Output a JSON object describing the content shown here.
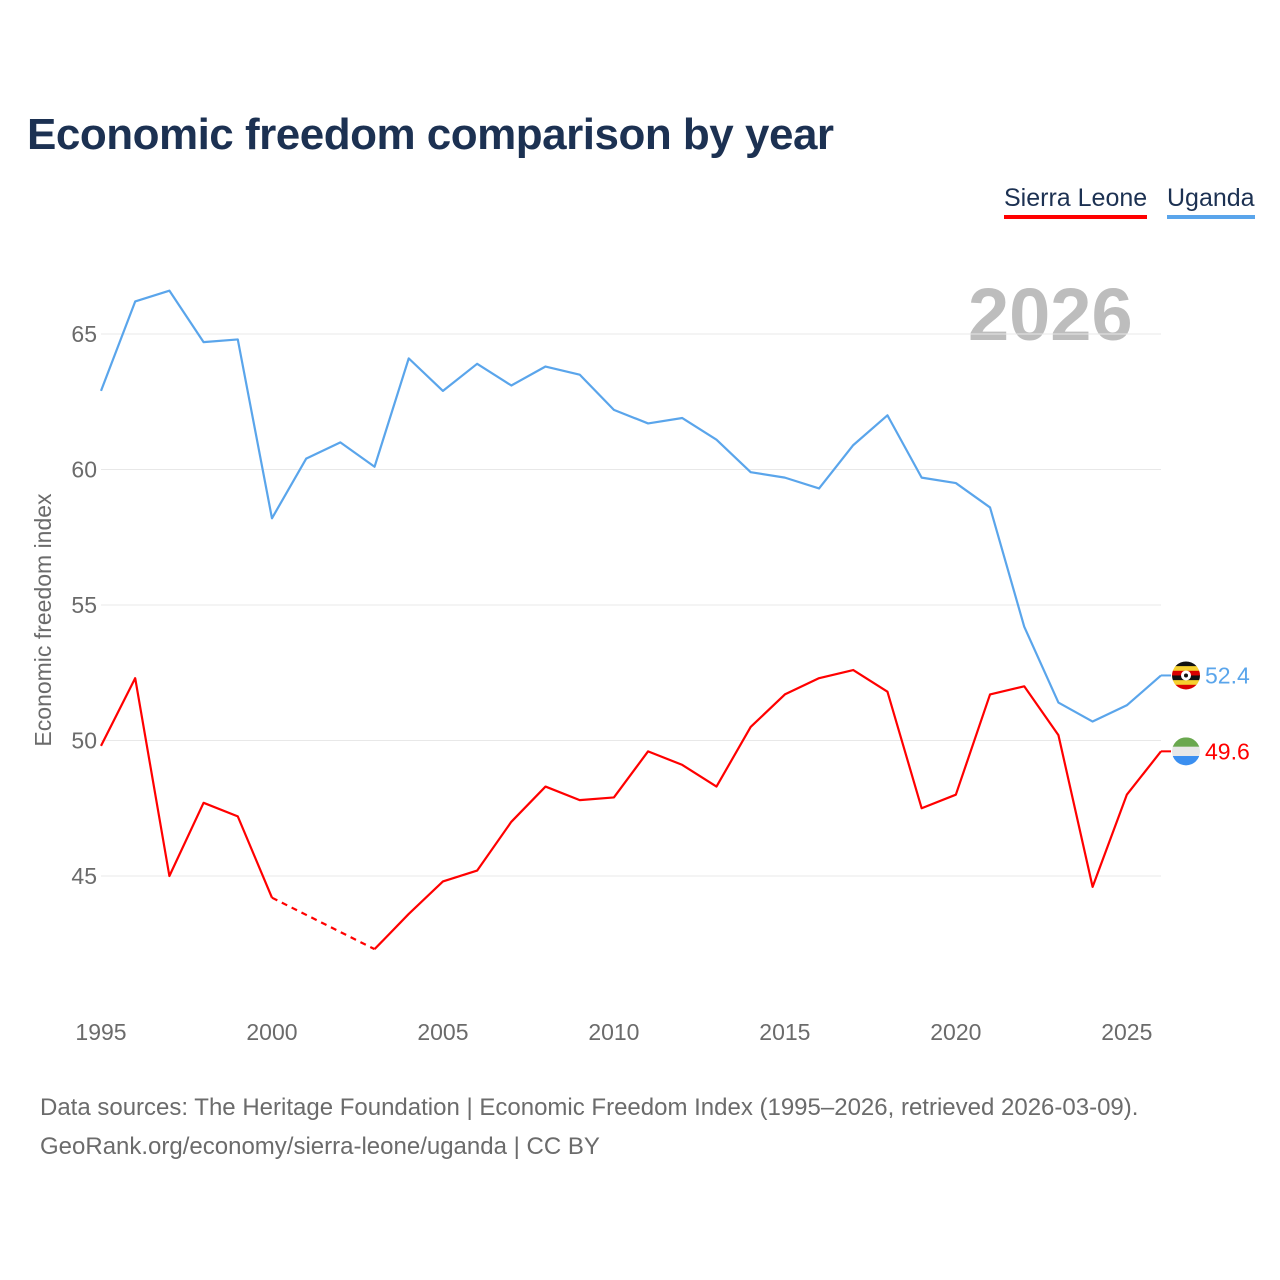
{
  "chart_data": {
    "type": "line",
    "title": "Economic freedom comparison by year",
    "ylabel": "Economic freedom index",
    "xlabel": "",
    "ylim": [
      40,
      67
    ],
    "xlim": [
      1995,
      2026
    ],
    "yticks": [
      "45",
      "50",
      "55",
      "60",
      "65"
    ],
    "xticks": [
      "1995",
      "2000",
      "2005",
      "2010",
      "2015",
      "2020",
      "2025"
    ],
    "grid": true,
    "legend_position": "top-right",
    "current_year": "2026",
    "x": [
      1995,
      1996,
      1997,
      1998,
      1999,
      2000,
      2001,
      2002,
      2003,
      2004,
      2005,
      2006,
      2007,
      2008,
      2009,
      2010,
      2011,
      2012,
      2013,
      2014,
      2015,
      2016,
      2017,
      2018,
      2019,
      2020,
      2021,
      2022,
      2023,
      2024,
      2025,
      2026
    ],
    "series": [
      {
        "name": "Sierra Leone",
        "color": "#ff0000",
        "end_label": "49.6",
        "flag": "sierra-leone-flag",
        "values": [
          49.8,
          52.3,
          45.0,
          47.7,
          47.2,
          44.2,
          null,
          null,
          42.3,
          43.6,
          44.8,
          45.2,
          47.0,
          48.3,
          47.8,
          47.9,
          49.6,
          49.1,
          48.3,
          50.5,
          51.7,
          52.3,
          52.6,
          51.8,
          47.5,
          48.0,
          51.7,
          52.0,
          50.2,
          44.6,
          48.0,
          49.6
        ]
      },
      {
        "name": "Uganda",
        "color": "#5aa5eb",
        "end_label": "52.4",
        "flag": "uganda-flag",
        "values": [
          62.9,
          66.2,
          66.6,
          64.7,
          64.8,
          58.2,
          60.4,
          61.0,
          60.1,
          64.1,
          62.9,
          63.9,
          63.1,
          63.8,
          63.5,
          62.2,
          61.7,
          61.9,
          61.1,
          59.9,
          59.7,
          59.3,
          60.9,
          62.0,
          59.7,
          59.5,
          58.6,
          54.2,
          51.4,
          50.7,
          51.3,
          52.4
        ]
      }
    ]
  },
  "source": {
    "line1": "Data sources: The Heritage Foundation | Economic Freedom Index (1995–2026, retrieved 2026-03-09).",
    "line2": "GeoRank.org/economy/sierra-leone/uganda | CC BY"
  }
}
